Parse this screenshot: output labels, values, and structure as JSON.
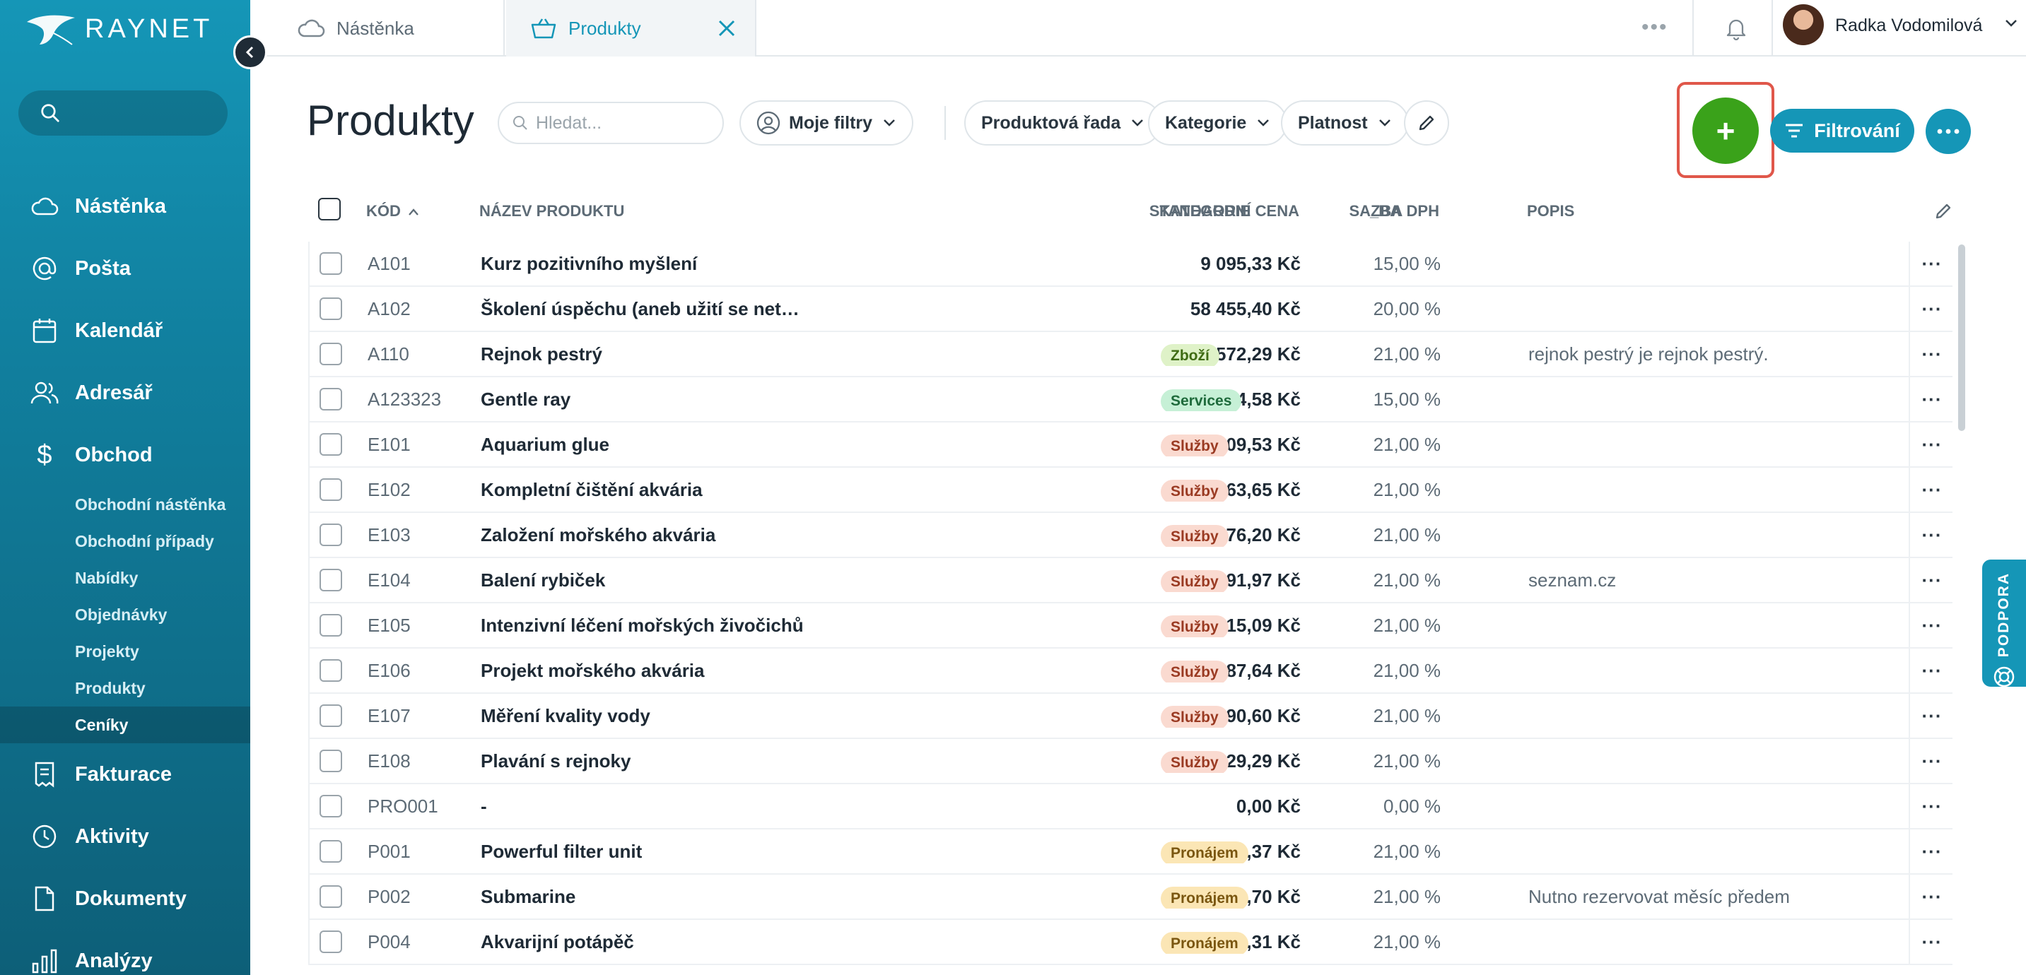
{
  "app": {
    "brand": "RAYNET"
  },
  "sidebar": {
    "search_placeholder": "",
    "items": [
      {
        "label": "Nástěnka",
        "icon": "cloud-icon"
      },
      {
        "label": "Pošta",
        "icon": "at-icon"
      },
      {
        "label": "Kalendář",
        "icon": "calendar-icon"
      },
      {
        "label": "Adresář",
        "icon": "contacts-icon"
      },
      {
        "label": "Obchod",
        "icon": "dollar-icon"
      },
      {
        "label": "Fakturace",
        "icon": "invoice-icon"
      },
      {
        "label": "Aktivity",
        "icon": "clock-icon"
      },
      {
        "label": "Dokumenty",
        "icon": "document-icon"
      },
      {
        "label": "Analýzy",
        "icon": "chart-icon"
      }
    ],
    "subitems": [
      {
        "label": "Obchodní nástěnka"
      },
      {
        "label": "Obchodní případy"
      },
      {
        "label": "Nabídky"
      },
      {
        "label": "Objednávky"
      },
      {
        "label": "Projekty"
      },
      {
        "label": "Produkty"
      },
      {
        "label": "Ceníky",
        "active": true
      }
    ]
  },
  "topbar": {
    "tabs": [
      {
        "label": "Nástěnka",
        "icon": "cloud-icon"
      },
      {
        "label": "Produkty",
        "icon": "basket-icon",
        "active": true
      }
    ],
    "user_name": "Radka Vodomilová"
  },
  "toolbar": {
    "title": "Produkty",
    "search_placeholder": "Hledat...",
    "my_filters": "Moje filtry",
    "filters": [
      "Produktová řada",
      "Kategorie",
      "Platnost"
    ],
    "add_label": "+",
    "filter_button": "Filtrování"
  },
  "table": {
    "columns": {
      "code": "KÓD",
      "name": "NÁZEV PRODUKTU",
      "price": "STANDARDNÍ CENA",
      "vat": "SAZBA DPH",
      "category": "KATEGORIE",
      "ba": "_BA",
      "desc": "POPIS"
    },
    "rows": [
      {
        "code": "A101",
        "name": "Kurz pozitivního myšlení",
        "price": "9 095,33 Kč",
        "vat": "15,00 %",
        "category": "",
        "desc": ""
      },
      {
        "code": "A102",
        "name": "Školení úspěchu (aneb užití se netrest…",
        "price": "58 455,40 Kč",
        "vat": "20,00 %",
        "category": "",
        "desc": ""
      },
      {
        "code": "A110",
        "name": "Rejnok pestrý",
        "price": "572,29 Kč",
        "vat": "21,00 %",
        "category": "Zboží",
        "desc": "rejnok pestrý je rejnok pestrý."
      },
      {
        "code": "A123323",
        "name": "Gentle ray",
        "price": "1 144,58 Kč",
        "vat": "15,00 %",
        "category": "Services",
        "desc": ""
      },
      {
        "code": "E101",
        "name": "Aquarium glue",
        "price": "909,53 Kč",
        "vat": "21,00 %",
        "category": "Služby",
        "desc": ""
      },
      {
        "code": "E102",
        "name": "Kompletní čištění akvária",
        "price": "2 963,65 Kč",
        "vat": "21,00 %",
        "category": "Služby",
        "desc": ""
      },
      {
        "code": "E103",
        "name": "Založení mořského akvária",
        "price": "5 876,20 Kč",
        "vat": "21,00 %",
        "category": "Služby",
        "desc": ""
      },
      {
        "code": "E104",
        "name": "Balení rybiček",
        "price": "91,97 Kč",
        "vat": "21,00 %",
        "category": "Služby",
        "desc": "seznam.cz"
      },
      {
        "code": "E105",
        "name": "Intenzivní léčení mořských živočichů",
        "price": "10 015,09 Kč",
        "vat": "21,00 %",
        "category": "Služby",
        "desc": ""
      },
      {
        "code": "E106",
        "name": "Projekt mořského akvária",
        "price": "45 987,64 Kč",
        "vat": "21,00 %",
        "category": "Služby",
        "desc": ""
      },
      {
        "code": "E107",
        "name": "Měření kvality vody",
        "price": "1 890,60 Kč",
        "vat": "21,00 %",
        "category": "Služby",
        "desc": ""
      },
      {
        "code": "E108",
        "name": "Plavání s rejnoky",
        "price": "1 829,29 Kč",
        "vat": "21,00 %",
        "category": "Služby",
        "desc": ""
      },
      {
        "code": "PRO001",
        "name": "-",
        "price": "0,00 Kč",
        "vat": "0,00 %",
        "category": "",
        "desc": ""
      },
      {
        "code": "P001",
        "name": "Powerful filter unit",
        "price": "12 263,37 Kč",
        "vat": "21,00 %",
        "category": "Pronájem",
        "desc": ""
      },
      {
        "code": "P002",
        "name": "Submarine",
        "price": "122 633,70 Kč",
        "vat": "21,00 %",
        "category": "Pronájem",
        "desc": "Nutno rezervovat měsíc předem"
      },
      {
        "code": "P004",
        "name": "Akvarijní potápěč",
        "price": "1 318,31 Kč",
        "vat": "21,00 %",
        "category": "Pronájem",
        "desc": ""
      }
    ],
    "row_action": "···"
  },
  "badges": {
    "Zboží": {
      "bg": "#dff2c8",
      "fg": "#3f6b13"
    },
    "Services": {
      "bg": "#c6f0d6",
      "fg": "#1f6b3c"
    },
    "Služby": {
      "bg": "#fadad0",
      "fg": "#9a3a22"
    },
    "Pronájem": {
      "bg": "#fbe6b5",
      "fg": "#7a5610"
    }
  },
  "support": {
    "label": "PODPORA"
  },
  "colors": {
    "accent": "#1596b7",
    "add": "#3aa21a",
    "highlight": "#e0574a"
  }
}
